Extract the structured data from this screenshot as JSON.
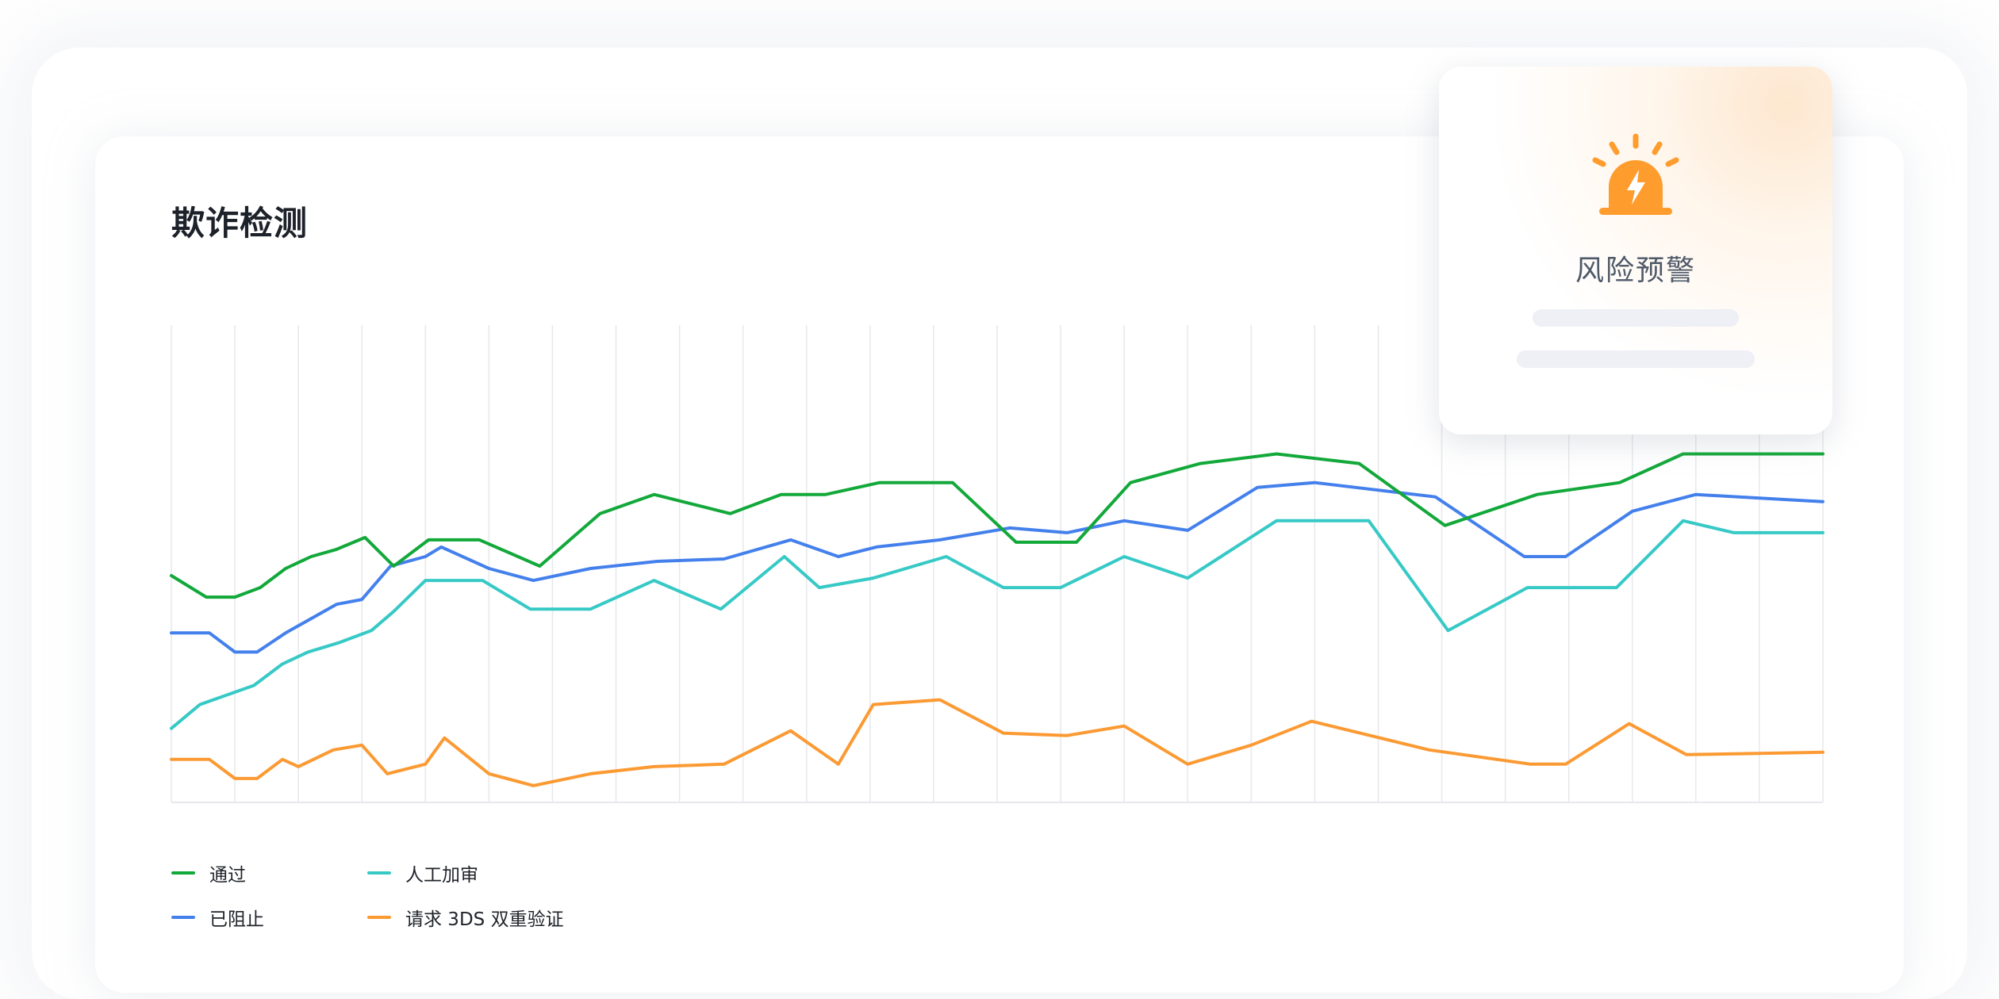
{
  "title": "欺诈检测",
  "alert_card": {
    "title": "风险预警",
    "icon": "alarm-siren-icon",
    "accent": "#ff9c2e"
  },
  "legend": [
    {
      "label": "通过",
      "color": "#12a83a"
    },
    {
      "label": "人工加审",
      "color": "#36c9c6"
    },
    {
      "label": "已阻止",
      "color": "#4480ec"
    },
    {
      "label": "请求 3DS 双重验证",
      "color": "#fb9a33"
    }
  ],
  "chart_data": {
    "type": "line",
    "title": "欺诈检测",
    "xlabel": "",
    "ylabel": "",
    "ylim": [
      0,
      100
    ],
    "grid": "vertical",
    "legend_position": "bottom-left",
    "x": [
      0,
      1,
      2,
      3,
      4,
      5,
      6,
      7,
      8,
      9,
      10,
      11,
      12,
      13,
      14,
      15,
      16,
      17,
      18,
      19,
      20,
      21,
      22,
      23,
      24,
      25,
      26
    ],
    "series": [
      {
        "name": "通过",
        "color": "#12a83a",
        "points": [
          [
            0,
            47.5
          ],
          [
            0.55,
            43
          ],
          [
            1,
            43
          ],
          [
            1.4,
            45
          ],
          [
            1.8,
            49
          ],
          [
            2.2,
            51.5
          ],
          [
            2.6,
            53
          ],
          [
            3.05,
            55.5
          ],
          [
            3.5,
            49.5
          ],
          [
            4.05,
            55
          ],
          [
            4.85,
            55
          ],
          [
            5.8,
            49.5
          ],
          [
            6.75,
            60.5
          ],
          [
            7.6,
            64.5
          ],
          [
            8.8,
            60.5
          ],
          [
            9.6,
            64.5
          ],
          [
            10.3,
            64.5
          ],
          [
            11.15,
            67
          ],
          [
            12.3,
            67
          ],
          [
            13.3,
            54.5
          ],
          [
            14.25,
            54.5
          ],
          [
            15.1,
            67
          ],
          [
            16.2,
            71
          ],
          [
            17.4,
            73
          ],
          [
            18.7,
            71
          ],
          [
            20.05,
            58
          ],
          [
            21.5,
            64.5
          ],
          [
            22.8,
            67
          ],
          [
            23.8,
            73
          ],
          [
            26,
            73
          ]
        ]
      },
      {
        "name": "已阻止",
        "color": "#4480ec",
        "points": [
          [
            0,
            35.5
          ],
          [
            0.6,
            35.5
          ],
          [
            1,
            31.5
          ],
          [
            1.35,
            31.5
          ],
          [
            1.8,
            35.5
          ],
          [
            2.6,
            41.5
          ],
          [
            3,
            42.5
          ],
          [
            3.45,
            49.5
          ],
          [
            4,
            51.5
          ],
          [
            4.25,
            53.5
          ],
          [
            5,
            49
          ],
          [
            5.7,
            46.5
          ],
          [
            6.6,
            49
          ],
          [
            7.65,
            50.5
          ],
          [
            8.7,
            51
          ],
          [
            9.75,
            55
          ],
          [
            10.5,
            51.5
          ],
          [
            11.1,
            53.5
          ],
          [
            12.1,
            55
          ],
          [
            13.2,
            57.5
          ],
          [
            14.1,
            56.5
          ],
          [
            15,
            59
          ],
          [
            16,
            57
          ],
          [
            17.1,
            66
          ],
          [
            18,
            67
          ],
          [
            19.9,
            64
          ],
          [
            21.3,
            51.5
          ],
          [
            21.95,
            51.5
          ],
          [
            23,
            61
          ],
          [
            24,
            64.5
          ],
          [
            26,
            63
          ]
        ]
      },
      {
        "name": "人工加审",
        "color": "#36c9c6",
        "points": [
          [
            0,
            15.5
          ],
          [
            0.45,
            20.5
          ],
          [
            1.3,
            24.5
          ],
          [
            1.75,
            29
          ],
          [
            2.15,
            31.5
          ],
          [
            2.65,
            33.5
          ],
          [
            3.15,
            36
          ],
          [
            3.5,
            40
          ],
          [
            4,
            46.5
          ],
          [
            4.9,
            46.5
          ],
          [
            5.65,
            40.5
          ],
          [
            6.6,
            40.5
          ],
          [
            7.6,
            46.5
          ],
          [
            8.65,
            40.5
          ],
          [
            9.65,
            51.5
          ],
          [
            10.2,
            45
          ],
          [
            11.05,
            47
          ],
          [
            12.2,
            51.5
          ],
          [
            13.1,
            45
          ],
          [
            14,
            45
          ],
          [
            15,
            51.5
          ],
          [
            16,
            47
          ],
          [
            17.4,
            59
          ],
          [
            18.85,
            59
          ],
          [
            20.1,
            36
          ],
          [
            21.35,
            45
          ],
          [
            22.75,
            45
          ],
          [
            23.8,
            59
          ],
          [
            24.6,
            56.5
          ],
          [
            26,
            56.5
          ]
        ]
      },
      {
        "name": "请求 3DS 双重验证",
        "color": "#fb9a33",
        "points": [
          [
            0,
            9
          ],
          [
            0.6,
            9
          ],
          [
            1,
            5
          ],
          [
            1.35,
            5
          ],
          [
            1.75,
            9
          ],
          [
            2,
            7.5
          ],
          [
            2.55,
            11
          ],
          [
            3,
            12
          ],
          [
            3.4,
            6
          ],
          [
            4,
            8
          ],
          [
            4.3,
            13.5
          ],
          [
            5,
            6
          ],
          [
            5.7,
            3.5
          ],
          [
            6.6,
            6
          ],
          [
            7.6,
            7.5
          ],
          [
            8.7,
            8
          ],
          [
            9.75,
            15
          ],
          [
            10.5,
            8
          ],
          [
            11.05,
            20.5
          ],
          [
            12.1,
            21.5
          ],
          [
            13.1,
            14.5
          ],
          [
            14.1,
            14
          ],
          [
            15,
            16
          ],
          [
            16,
            8
          ],
          [
            17,
            12
          ],
          [
            17.95,
            17
          ],
          [
            19.8,
            11
          ],
          [
            21.4,
            8
          ],
          [
            21.95,
            8
          ],
          [
            22.95,
            16.5
          ],
          [
            23.85,
            10
          ],
          [
            26,
            10.5
          ]
        ]
      }
    ]
  }
}
